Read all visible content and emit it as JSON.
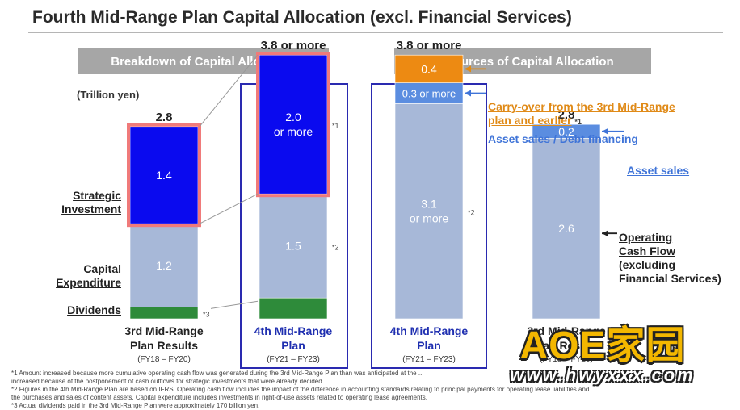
{
  "page_title": "Fourth Mid-Range Plan Capital Allocation (excl. Financial Services)",
  "banners": {
    "left": "Breakdown of Capital Allocation",
    "right": "Resources of Capital Allocation"
  },
  "unit": "(Trillion yen)",
  "category_labels": {
    "strategic": [
      "Strategic",
      "Investment"
    ],
    "capex": [
      "Capital",
      "Expenditure"
    ],
    "dividends": "Dividends"
  },
  "colors": {
    "strategic": "#0a0aef",
    "capex": "#a7b8d8",
    "dividends": "#2e8b3a",
    "carryover": "#ed8a12",
    "asset_sales": "#5b8de0",
    "highlight_border": "#f07a7a",
    "plan_frame": "#2a2ab0",
    "orange_text": "#e08a17",
    "blue_text": "#3f74d8"
  },
  "chart_data": {
    "type": "bar",
    "stacked": true,
    "unit": "Trillion yen",
    "categories": [
      [
        "3rd Mid-Range",
        "Plan Results",
        "(FY18 – FY20)"
      ],
      [
        "4th Mid-Range",
        "Plan",
        "(FY21 – FY23)"
      ],
      [
        "4th Mid-Range",
        "Plan",
        "(FY21 – FY23)"
      ],
      [
        "3rd Mid-Range",
        "Plan Results",
        "(FY18 – FY20)"
      ]
    ],
    "totals": [
      "2.8",
      "3.8 or more",
      "3.8 or more",
      "2.8"
    ],
    "bars": [
      {
        "segments": [
          {
            "key": "dividends",
            "value": 0.17,
            "label": "",
            "note": "*3"
          },
          {
            "key": "capex",
            "value": 1.2,
            "label": "1.2",
            "note": ""
          },
          {
            "key": "strategic",
            "value": 1.4,
            "label": "1.4",
            "note": ""
          }
        ]
      },
      {
        "segments": [
          {
            "key": "dividends",
            "value": 0.3,
            "label": "",
            "note": ""
          },
          {
            "key": "capex",
            "value": 1.5,
            "label": "1.5",
            "note": "*2"
          },
          {
            "key": "strategic",
            "value": 2.0,
            "label": "2.0\nor more",
            "note": "*1"
          }
        ]
      },
      {
        "segments": [
          {
            "key": "capex",
            "value": 3.1,
            "label": "3.1\nor more",
            "note": "*2"
          },
          {
            "key": "asset_sales",
            "value": 0.3,
            "label": "0.3  or more",
            "note": ""
          },
          {
            "key": "carryover",
            "value": 0.4,
            "label": "0.4",
            "note": ""
          }
        ]
      },
      {
        "segments": [
          {
            "key": "capex",
            "value": 2.6,
            "label": "2.6",
            "note": ""
          },
          {
            "key": "asset_sales",
            "value": 0.2,
            "label": "0.2",
            "note": ""
          }
        ]
      }
    ],
    "resource_labels": {
      "carryover": [
        "Carry-over from the 3rd Mid-Range",
        "plan and earlier"
      ],
      "carryover_note": "*1",
      "asset_debt": "Asset sales / Debt financing",
      "asset_sales": "Asset sales",
      "ocf": [
        "Operating",
        "Cash Flow",
        "(excluding",
        "Financial Services)"
      ]
    }
  },
  "footnotes": [
    "*1 Amount increased because more cumulative operating cash flow was generated during the 3rd Mid-Range Plan than was anticipated at the ...",
    "    increased because of the postponement of cash outflows for strategic investments that were already decided.",
    "*2 Figures in the 4th Mid-Range Plan are based on IFRS.  Operating cash flow includes the impact of the difference in accounting standards relating to principal payments for operating lease liabilities and",
    "    the purchases and sales of content assets.  Capital expenditure includes investments in right-of-use assets related to operating lease agreements.",
    "*3 Actual dividends paid in the 3rd Mid-Range Plan were approximately 170 billion yen."
  ],
  "watermark": {
    "text": "AOE家园",
    "url": "www.hwyxxx.com"
  }
}
